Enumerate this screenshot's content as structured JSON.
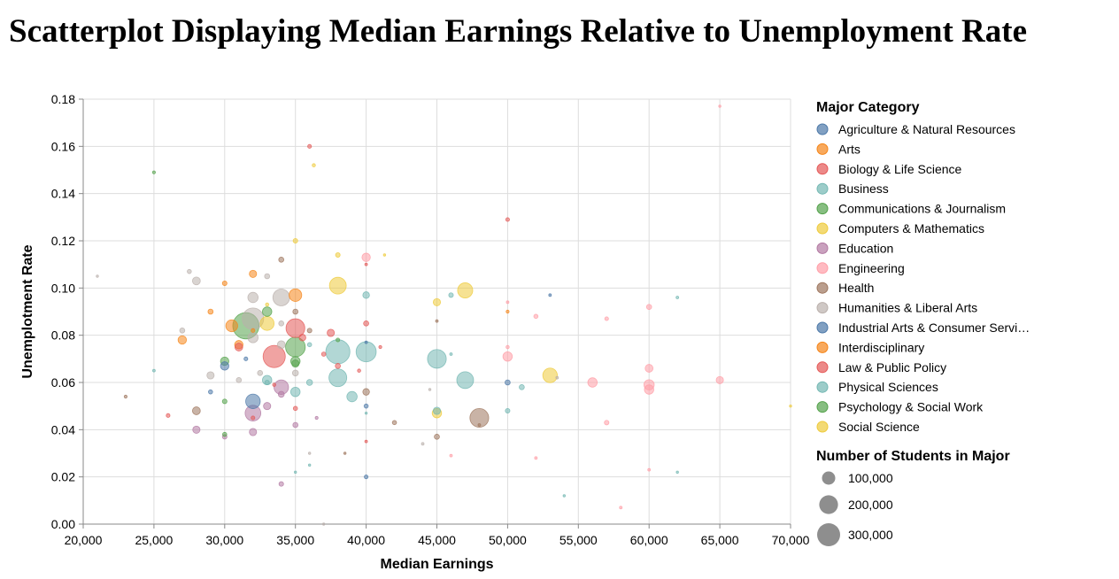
{
  "chart_data": {
    "type": "scatter",
    "title": "Scatterplot Displaying Median Earnings Relative to Unemployment Rate",
    "xlabel": "Median Earnings",
    "ylabel": "Unemplotment Rate",
    "xlim": [
      20000,
      70000
    ],
    "ylim": [
      0,
      0.18
    ],
    "xticks": [
      "20,000",
      "25,000",
      "30,000",
      "35,000",
      "40,000",
      "45,000",
      "50,000",
      "55,000",
      "60,000",
      "65,000",
      "70,000"
    ],
    "yticks": [
      "0.00",
      "0.02",
      "0.04",
      "0.06",
      "0.08",
      "0.10",
      "0.12",
      "0.14",
      "0.16",
      "0.18"
    ],
    "grid": true,
    "color_legend": {
      "title": "Major Category",
      "placement": "right",
      "categories": [
        {
          "name": "Agriculture & Natural Resources",
          "color": "#4c78a8"
        },
        {
          "name": "Arts",
          "color": "#f58518"
        },
        {
          "name": "Biology & Life Science",
          "color": "#e45756"
        },
        {
          "name": "Business",
          "color": "#72b7b2"
        },
        {
          "name": "Communications & Journalism",
          "color": "#54a24b"
        },
        {
          "name": "Computers & Mathematics",
          "color": "#eeca3b"
        },
        {
          "name": "Education",
          "color": "#b279a2"
        },
        {
          "name": "Engineering",
          "color": "#ff9da6"
        },
        {
          "name": "Health",
          "color": "#9d755d"
        },
        {
          "name": "Humanities & Liberal Arts",
          "color": "#bab0ac"
        },
        {
          "name": "Industrial Arts & Consumer Servi…",
          "color": "#4c78a8"
        },
        {
          "name": "Interdisciplinary",
          "color": "#f58518"
        },
        {
          "name": "Law & Public Policy",
          "color": "#e45756"
        },
        {
          "name": "Physical Sciences",
          "color": "#72b7b2"
        },
        {
          "name": "Psychology & Social Work",
          "color": "#54a24b"
        },
        {
          "name": "Social Science",
          "color": "#eeca3b"
        }
      ]
    },
    "size_legend": {
      "title": "Number of Students in Major",
      "entries": [
        {
          "label": "100,000",
          "value": 100000
        },
        {
          "label": "200,000",
          "value": 200000
        },
        {
          "label": "300,000",
          "value": 300000
        }
      ]
    },
    "points": [
      {
        "x": 31500,
        "y": 0.084,
        "n": 390000,
        "c": 4
      },
      {
        "x": 32000,
        "y": 0.087,
        "n": 260000,
        "c": 9
      },
      {
        "x": 33500,
        "y": 0.071,
        "n": 280000,
        "c": 2
      },
      {
        "x": 38000,
        "y": 0.073,
        "n": 330000,
        "c": 3
      },
      {
        "x": 35000,
        "y": 0.075,
        "n": 220000,
        "c": 14
      },
      {
        "x": 35000,
        "y": 0.083,
        "n": 200000,
        "c": 12
      },
      {
        "x": 34000,
        "y": 0.096,
        "n": 160000,
        "c": 9
      },
      {
        "x": 40000,
        "y": 0.073,
        "n": 230000,
        "c": 3
      },
      {
        "x": 45000,
        "y": 0.07,
        "n": 200000,
        "c": 3
      },
      {
        "x": 38000,
        "y": 0.062,
        "n": 180000,
        "c": 3
      },
      {
        "x": 47000,
        "y": 0.061,
        "n": 160000,
        "c": 3
      },
      {
        "x": 48000,
        "y": 0.045,
        "n": 200000,
        "c": 8
      },
      {
        "x": 38000,
        "y": 0.101,
        "n": 160000,
        "c": 5
      },
      {
        "x": 47000,
        "y": 0.099,
        "n": 130000,
        "c": 15
      },
      {
        "x": 53000,
        "y": 0.063,
        "n": 120000,
        "c": 5
      },
      {
        "x": 32000,
        "y": 0.052,
        "n": 120000,
        "c": 10
      },
      {
        "x": 32000,
        "y": 0.047,
        "n": 140000,
        "c": 6
      },
      {
        "x": 34000,
        "y": 0.058,
        "n": 120000,
        "c": 6
      },
      {
        "x": 33000,
        "y": 0.085,
        "n": 110000,
        "c": 15
      },
      {
        "x": 35000,
        "y": 0.097,
        "n": 90000,
        "c": 11
      },
      {
        "x": 30500,
        "y": 0.084,
        "n": 80000,
        "c": 1
      },
      {
        "x": 33000,
        "y": 0.09,
        "n": 50000,
        "c": 14
      },
      {
        "x": 32000,
        "y": 0.096,
        "n": 60000,
        "c": 9
      },
      {
        "x": 35000,
        "y": 0.069,
        "n": 50000,
        "c": 4
      },
      {
        "x": 32000,
        "y": 0.079,
        "n": 60000,
        "c": 9
      },
      {
        "x": 33000,
        "y": 0.061,
        "n": 50000,
        "c": 3
      },
      {
        "x": 35000,
        "y": 0.056,
        "n": 50000,
        "c": 13
      },
      {
        "x": 39000,
        "y": 0.054,
        "n": 60000,
        "c": 13
      },
      {
        "x": 40000,
        "y": 0.113,
        "n": 40000,
        "c": 7
      },
      {
        "x": 50000,
        "y": 0.071,
        "n": 50000,
        "c": 7
      },
      {
        "x": 56000,
        "y": 0.06,
        "n": 50000,
        "c": 7
      },
      {
        "x": 60000,
        "y": 0.059,
        "n": 60000,
        "c": 7
      },
      {
        "x": 60000,
        "y": 0.057,
        "n": 50000,
        "c": 7
      },
      {
        "x": 60000,
        "y": 0.066,
        "n": 35000,
        "c": 7
      },
      {
        "x": 65000,
        "y": 0.061,
        "n": 30000,
        "c": 7
      },
      {
        "x": 45000,
        "y": 0.047,
        "n": 50000,
        "c": 5
      },
      {
        "x": 45000,
        "y": 0.048,
        "n": 30000,
        "c": 3
      },
      {
        "x": 45000,
        "y": 0.094,
        "n": 30000,
        "c": 5
      },
      {
        "x": 30000,
        "y": 0.069,
        "n": 40000,
        "c": 14
      },
      {
        "x": 30000,
        "y": 0.067,
        "n": 40000,
        "c": 0
      },
      {
        "x": 31000,
        "y": 0.076,
        "n": 40000,
        "c": 11
      },
      {
        "x": 31000,
        "y": 0.075,
        "n": 35000,
        "c": 2
      },
      {
        "x": 27000,
        "y": 0.078,
        "n": 40000,
        "c": 11
      },
      {
        "x": 28000,
        "y": 0.048,
        "n": 35000,
        "c": 8
      },
      {
        "x": 28000,
        "y": 0.04,
        "n": 30000,
        "c": 6
      },
      {
        "x": 28000,
        "y": 0.103,
        "n": 35000,
        "c": 9
      },
      {
        "x": 29000,
        "y": 0.063,
        "n": 30000,
        "c": 9
      },
      {
        "x": 32000,
        "y": 0.106,
        "n": 30000,
        "c": 11
      },
      {
        "x": 32000,
        "y": 0.039,
        "n": 30000,
        "c": 6
      },
      {
        "x": 33000,
        "y": 0.05,
        "n": 30000,
        "c": 6
      },
      {
        "x": 34000,
        "y": 0.076,
        "n": 35000,
        "c": 9
      },
      {
        "x": 34000,
        "y": 0.055,
        "n": 20000,
        "c": 6
      },
      {
        "x": 35000,
        "y": 0.068,
        "n": 30000,
        "c": 14
      },
      {
        "x": 35000,
        "y": 0.064,
        "n": 20000,
        "c": 9
      },
      {
        "x": 35500,
        "y": 0.079,
        "n": 25000,
        "c": 12
      },
      {
        "x": 36000,
        "y": 0.06,
        "n": 20000,
        "c": 3
      },
      {
        "x": 37500,
        "y": 0.081,
        "n": 30000,
        "c": 2
      },
      {
        "x": 38000,
        "y": 0.067,
        "n": 15000,
        "c": 12
      },
      {
        "x": 40000,
        "y": 0.056,
        "n": 25000,
        "c": 8
      },
      {
        "x": 40000,
        "y": 0.097,
        "n": 25000,
        "c": 3
      },
      {
        "x": 40000,
        "y": 0.085,
        "n": 15000,
        "c": 2
      },
      {
        "x": 40000,
        "y": 0.05,
        "n": 10000,
        "c": 0
      },
      {
        "x": 34000,
        "y": 0.112,
        "n": 15000,
        "c": 8
      },
      {
        "x": 35000,
        "y": 0.09,
        "n": 15000,
        "c": 8
      },
      {
        "x": 35000,
        "y": 0.12,
        "n": 12000,
        "c": 5
      },
      {
        "x": 36000,
        "y": 0.082,
        "n": 12000,
        "c": 8
      },
      {
        "x": 38000,
        "y": 0.114,
        "n": 12000,
        "c": 5
      },
      {
        "x": 33000,
        "y": 0.105,
        "n": 15000,
        "c": 9
      },
      {
        "x": 34000,
        "y": 0.085,
        "n": 15000,
        "c": 9
      },
      {
        "x": 35000,
        "y": 0.042,
        "n": 15000,
        "c": 6
      },
      {
        "x": 35000,
        "y": 0.049,
        "n": 10000,
        "c": 2
      },
      {
        "x": 34000,
        "y": 0.017,
        "n": 12000,
        "c": 6
      },
      {
        "x": 30000,
        "y": 0.102,
        "n": 12000,
        "c": 11
      },
      {
        "x": 30000,
        "y": 0.052,
        "n": 12000,
        "c": 4
      },
      {
        "x": 30000,
        "y": 0.038,
        "n": 10000,
        "c": 14
      },
      {
        "x": 30000,
        "y": 0.037,
        "n": 12000,
        "c": 6
      },
      {
        "x": 29000,
        "y": 0.09,
        "n": 15000,
        "c": 11
      },
      {
        "x": 29000,
        "y": 0.056,
        "n": 10000,
        "c": 0
      },
      {
        "x": 27000,
        "y": 0.082,
        "n": 15000,
        "c": 9
      },
      {
        "x": 27500,
        "y": 0.107,
        "n": 10000,
        "c": 9
      },
      {
        "x": 31000,
        "y": 0.061,
        "n": 15000,
        "c": 9
      },
      {
        "x": 32500,
        "y": 0.064,
        "n": 15000,
        "c": 9
      },
      {
        "x": 33000,
        "y": 0.06,
        "n": 12000,
        "c": 3
      },
      {
        "x": 36000,
        "y": 0.076,
        "n": 10000,
        "c": 3
      },
      {
        "x": 37000,
        "y": 0.072,
        "n": 10000,
        "c": 12
      },
      {
        "x": 42000,
        "y": 0.043,
        "n": 10000,
        "c": 8
      },
      {
        "x": 45000,
        "y": 0.037,
        "n": 15000,
        "c": 8
      },
      {
        "x": 46000,
        "y": 0.097,
        "n": 12000,
        "c": 3
      },
      {
        "x": 50000,
        "y": 0.06,
        "n": 15000,
        "c": 0
      },
      {
        "x": 50000,
        "y": 0.048,
        "n": 12000,
        "c": 3
      },
      {
        "x": 51000,
        "y": 0.058,
        "n": 15000,
        "c": 3
      },
      {
        "x": 57000,
        "y": 0.043,
        "n": 12000,
        "c": 7
      },
      {
        "x": 60000,
        "y": 0.092,
        "n": 15000,
        "c": 7
      },
      {
        "x": 52000,
        "y": 0.088,
        "n": 10000,
        "c": 7
      },
      {
        "x": 57000,
        "y": 0.087,
        "n": 8000,
        "c": 7
      },
      {
        "x": 50000,
        "y": 0.129,
        "n": 8000,
        "c": 2
      },
      {
        "x": 36000,
        "y": 0.16,
        "n": 8000,
        "c": 2
      },
      {
        "x": 36300,
        "y": 0.152,
        "n": 6000,
        "c": 5
      },
      {
        "x": 25000,
        "y": 0.149,
        "n": 5000,
        "c": 4
      },
      {
        "x": 26000,
        "y": 0.046,
        "n": 8000,
        "c": 2
      },
      {
        "x": 23000,
        "y": 0.054,
        "n": 5000,
        "c": 8
      },
      {
        "x": 25000,
        "y": 0.065,
        "n": 4000,
        "c": 3
      },
      {
        "x": 21000,
        "y": 0.105,
        "n": 3000,
        "c": 9
      },
      {
        "x": 32000,
        "y": 0.045,
        "n": 8000,
        "c": 2
      },
      {
        "x": 40000,
        "y": 0.02,
        "n": 8000,
        "c": 0
      },
      {
        "x": 40000,
        "y": 0.11,
        "n": 4000,
        "c": 2
      },
      {
        "x": 40000,
        "y": 0.035,
        "n": 4000,
        "c": 2
      },
      {
        "x": 41000,
        "y": 0.075,
        "n": 5000,
        "c": 2
      },
      {
        "x": 41300,
        "y": 0.114,
        "n": 3000,
        "c": 5
      },
      {
        "x": 44000,
        "y": 0.034,
        "n": 4000,
        "c": 9
      },
      {
        "x": 44500,
        "y": 0.057,
        "n": 3000,
        "c": 9
      },
      {
        "x": 45000,
        "y": 0.086,
        "n": 4000,
        "c": 8
      },
      {
        "x": 46000,
        "y": 0.072,
        "n": 4000,
        "c": 13
      },
      {
        "x": 46000,
        "y": 0.029,
        "n": 4000,
        "c": 7
      },
      {
        "x": 48000,
        "y": 0.042,
        "n": 4000,
        "c": 8
      },
      {
        "x": 50000,
        "y": 0.075,
        "n": 6000,
        "c": 7
      },
      {
        "x": 50000,
        "y": 0.094,
        "n": 4000,
        "c": 7
      },
      {
        "x": 50000,
        "y": 0.09,
        "n": 5000,
        "c": 11
      },
      {
        "x": 52000,
        "y": 0.028,
        "n": 4000,
        "c": 7
      },
      {
        "x": 53000,
        "y": 0.097,
        "n": 4000,
        "c": 0
      },
      {
        "x": 53500,
        "y": 0.062,
        "n": 4000,
        "c": 9
      },
      {
        "x": 54000,
        "y": 0.012,
        "n": 3000,
        "c": 13
      },
      {
        "x": 58000,
        "y": 0.007,
        "n": 4000,
        "c": 7
      },
      {
        "x": 60000,
        "y": 0.023,
        "n": 4000,
        "c": 7
      },
      {
        "x": 62000,
        "y": 0.096,
        "n": 4000,
        "c": 13
      },
      {
        "x": 62000,
        "y": 0.022,
        "n": 3000,
        "c": 13
      },
      {
        "x": 65000,
        "y": 0.177,
        "n": 3000,
        "c": 7
      },
      {
        "x": 70000,
        "y": 0.05,
        "n": 3000,
        "c": 5
      },
      {
        "x": 36000,
        "y": 0.025,
        "n": 3000,
        "c": 13
      },
      {
        "x": 36000,
        "y": 0.03,
        "n": 3000,
        "c": 9
      },
      {
        "x": 35000,
        "y": 0.022,
        "n": 3000,
        "c": 3
      },
      {
        "x": 38500,
        "y": 0.03,
        "n": 3000,
        "c": 8
      },
      {
        "x": 37000,
        "y": 0.0,
        "n": 3000,
        "c": 9
      },
      {
        "x": 40000,
        "y": 0.047,
        "n": 3000,
        "c": 13
      },
      {
        "x": 40000,
        "y": 0.077,
        "n": 4000,
        "c": 0
      },
      {
        "x": 33500,
        "y": 0.059,
        "n": 6000,
        "c": 12
      },
      {
        "x": 32000,
        "y": 0.082,
        "n": 8000,
        "c": 11
      },
      {
        "x": 31500,
        "y": 0.07,
        "n": 8000,
        "c": 0
      },
      {
        "x": 33000,
        "y": 0.093,
        "n": 6000,
        "c": 5
      },
      {
        "x": 38000,
        "y": 0.078,
        "n": 8000,
        "c": 14
      },
      {
        "x": 39500,
        "y": 0.065,
        "n": 6000,
        "c": 12
      },
      {
        "x": 36500,
        "y": 0.045,
        "n": 5000,
        "c": 6
      }
    ]
  }
}
